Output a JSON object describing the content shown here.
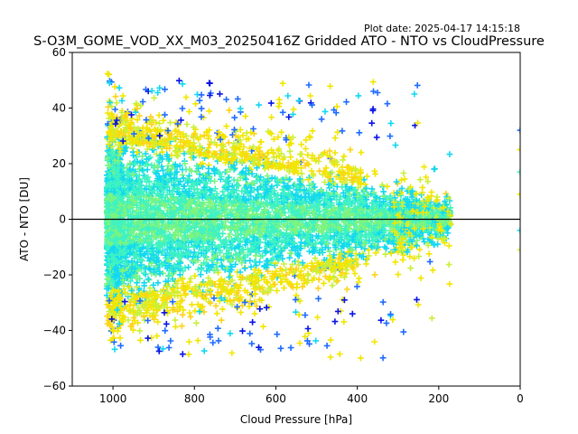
{
  "chart_data": {
    "type": "scatter",
    "title": "S-O3M_GOME_VOD_XX_M03_20250416Z Gridded ATO - NTO vs CloudPressure",
    "plot_date": "Plot date: 2025-04-17 14:15:18",
    "xlabel": "Cloud Pressure [hPa]",
    "ylabel": "ATO - NTO [DU]",
    "xlim": [
      1100,
      0
    ],
    "ylim": [
      -60,
      60
    ],
    "x_ticks": [
      "1000",
      "800",
      "600",
      "400",
      "200",
      "0"
    ],
    "y_ticks": [
      "60",
      "40",
      "20",
      "0",
      "−20",
      "−40",
      "−60"
    ],
    "x_tick_values": [
      1000,
      800,
      600,
      400,
      200,
      0
    ],
    "y_tick_values": [
      60,
      40,
      20,
      0,
      -20,
      -40,
      -60
    ],
    "reference_line_y": 0,
    "marker": "+",
    "grid": false,
    "colors": {
      "dark_blue": "#0a14e6",
      "blue": "#1f6cff",
      "cyan": "#12d8f0",
      "aquamarine": "#3ff2c2",
      "light_green": "#7df47e",
      "yellow_green": "#c9f03a",
      "yellow": "#f2e600",
      "gold": "#ffd21a"
    },
    "point_density": {
      "x_range": [
        1015,
        170
      ],
      "core_spread_at_1000": 25,
      "core_spread_at_200": 6,
      "outlier_spread_max": 57
    }
  }
}
